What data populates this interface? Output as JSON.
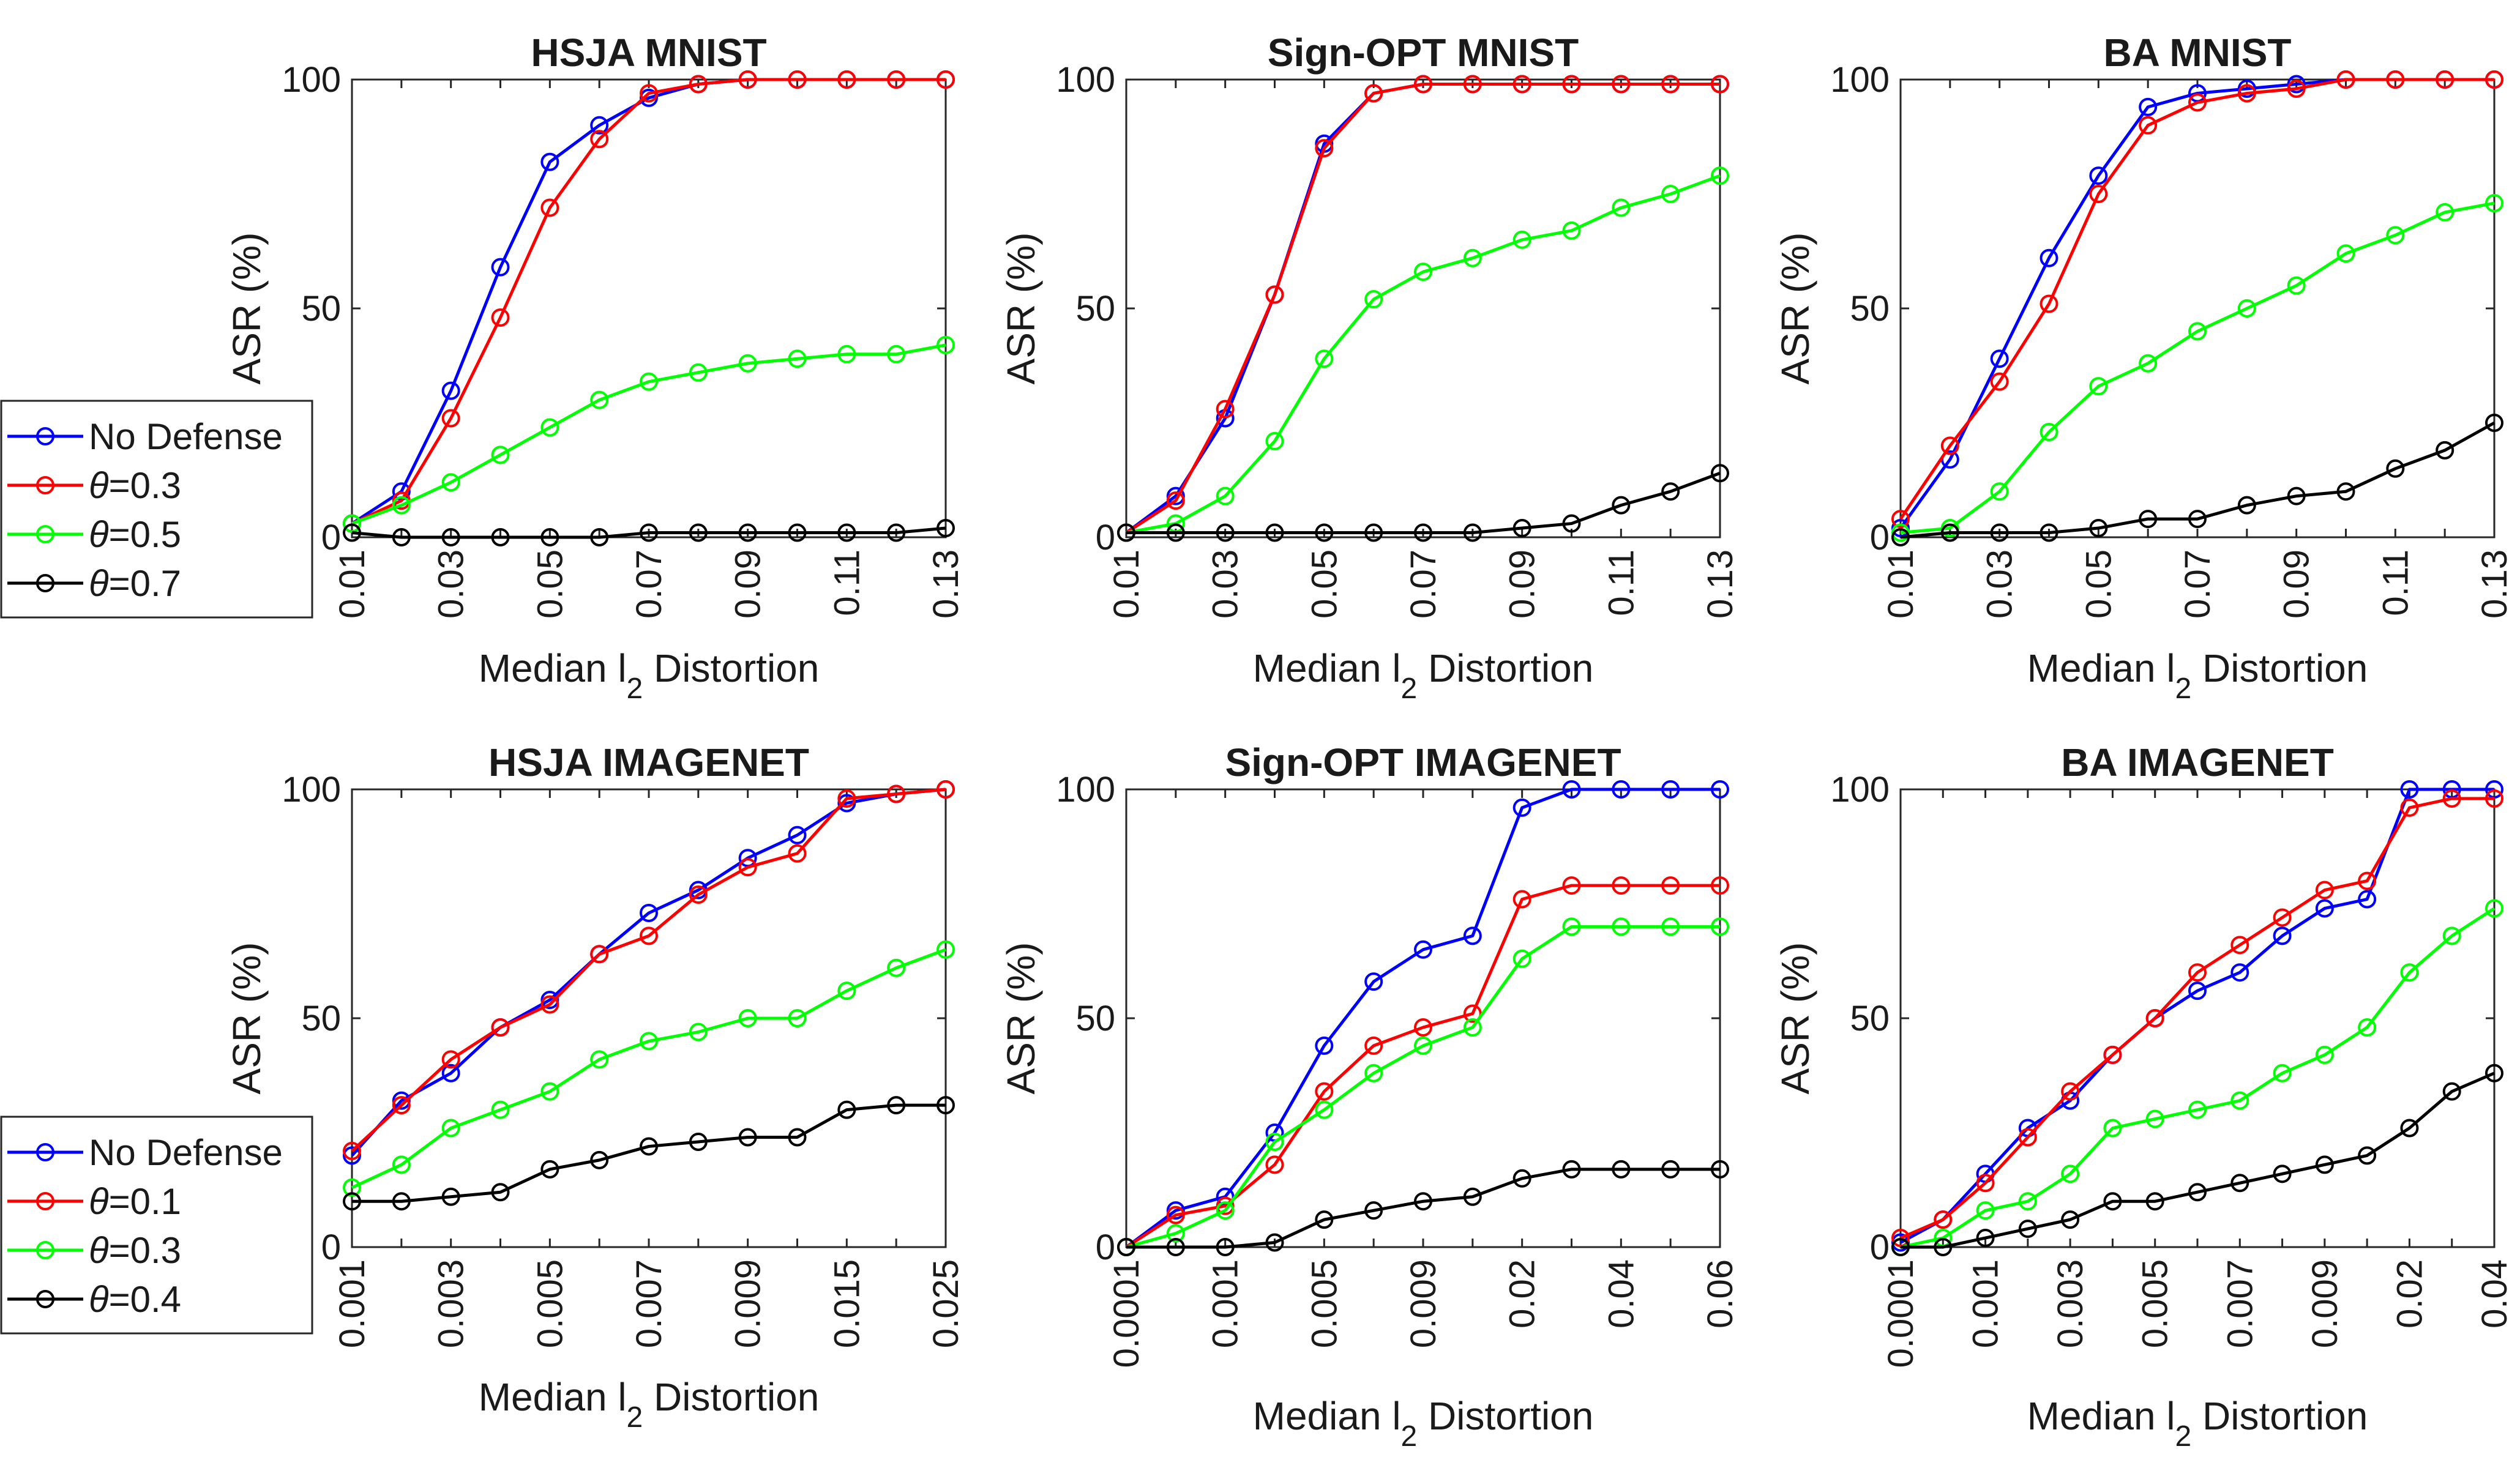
{
  "colors": {
    "No Defense": "#0000ff",
    "theta_a": "#ff0000",
    "theta_b": "#00ff00",
    "theta_c": "#000000"
  },
  "chart_data": [
    {
      "type": "line",
      "title": "HSJA MNIST",
      "xlabel": "Median l2 Distortion",
      "ylabel": "ASR (%)",
      "ylim": [
        0,
        100
      ],
      "yticks": [
        "0",
        "50",
        "100"
      ],
      "x": [
        "0.01",
        "0.02",
        "0.03",
        "0.04",
        "0.05",
        "0.06",
        "0.07",
        "0.08",
        "0.09",
        "0.10",
        "0.11",
        "0.12",
        "0.13"
      ],
      "xticks": [
        "0.01",
        "0.03",
        "0.05",
        "0.07",
        "0.09",
        "0.11",
        "0.13"
      ],
      "legend": {
        "placement": "left-outside",
        "entries": [
          "No Defense",
          "θ=0.3",
          "θ=0.5",
          "θ=0.7"
        ]
      },
      "series": [
        {
          "name": "No Defense",
          "values": [
            3,
            10,
            32,
            59,
            82,
            90,
            96,
            99,
            100,
            100,
            100,
            100,
            100
          ]
        },
        {
          "name": "θ=0.3",
          "values": [
            3,
            8,
            26,
            48,
            72,
            87,
            97,
            99,
            100,
            100,
            100,
            100,
            100
          ]
        },
        {
          "name": "θ=0.5",
          "values": [
            3,
            7,
            12,
            18,
            24,
            30,
            34,
            36,
            38,
            39,
            40,
            40,
            42
          ]
        },
        {
          "name": "θ=0.7",
          "values": [
            1,
            0,
            0,
            0,
            0,
            0,
            1,
            1,
            1,
            1,
            1,
            1,
            2
          ]
        }
      ]
    },
    {
      "type": "line",
      "title": "Sign-OPT MNIST",
      "xlabel": "Median l2 Distortion",
      "ylabel": "ASR (%)",
      "ylim": [
        0,
        100
      ],
      "yticks": [
        "0",
        "50",
        "100"
      ],
      "x": [
        "0.01",
        "0.02",
        "0.03",
        "0.04",
        "0.05",
        "0.06",
        "0.07",
        "0.08",
        "0.09",
        "0.10",
        "0.11",
        "0.12",
        "0.13"
      ],
      "xticks": [
        "0.01",
        "0.03",
        "0.05",
        "0.07",
        "0.09",
        "0.11",
        "0.13"
      ],
      "series": [
        {
          "name": "No Defense",
          "values": [
            1,
            9,
            26,
            53,
            86,
            97,
            99,
            99,
            99,
            99,
            99,
            99,
            99
          ]
        },
        {
          "name": "θ=0.3",
          "values": [
            1,
            8,
            28,
            53,
            85,
            97,
            99,
            99,
            99,
            99,
            99,
            99,
            99
          ]
        },
        {
          "name": "θ=0.5",
          "values": [
            1,
            3,
            9,
            21,
            39,
            52,
            58,
            61,
            65,
            67,
            72,
            75,
            79
          ]
        },
        {
          "name": "θ=0.7",
          "values": [
            1,
            1,
            1,
            1,
            1,
            1,
            1,
            1,
            2,
            3,
            7,
            10,
            14
          ]
        }
      ]
    },
    {
      "type": "line",
      "title": "BA MNIST",
      "xlabel": "Median l2 Distortion",
      "ylabel": "ASR (%)",
      "ylim": [
        0,
        100
      ],
      "yticks": [
        "0",
        "50",
        "100"
      ],
      "x": [
        "0.01",
        "0.02",
        "0.03",
        "0.04",
        "0.05",
        "0.06",
        "0.07",
        "0.08",
        "0.09",
        "0.10",
        "0.11",
        "0.12",
        "0.13"
      ],
      "xticks": [
        "0.01",
        "0.03",
        "0.05",
        "0.07",
        "0.09",
        "0.11",
        "0.13"
      ],
      "series": [
        {
          "name": "No Defense",
          "values": [
            2,
            17,
            39,
            61,
            79,
            94,
            97,
            98,
            99,
            100,
            100,
            100,
            100
          ]
        },
        {
          "name": "θ=0.3",
          "values": [
            4,
            20,
            34,
            51,
            75,
            90,
            95,
            97,
            98,
            100,
            100,
            100,
            100
          ]
        },
        {
          "name": "θ=0.5",
          "values": [
            1,
            2,
            10,
            23,
            33,
            38,
            45,
            50,
            55,
            62,
            66,
            71,
            73
          ]
        },
        {
          "name": "θ=0.7",
          "values": [
            0,
            1,
            1,
            1,
            2,
            4,
            4,
            7,
            9,
            10,
            15,
            19,
            25
          ]
        }
      ]
    },
    {
      "type": "line",
      "title": "HSJA IMAGENET",
      "xlabel": "Median l2 Distortion",
      "ylabel": "ASR (%)",
      "ylim": [
        0,
        100
      ],
      "yticks": [
        "0",
        "50",
        "100"
      ],
      "x": [
        "0.001",
        "0.002",
        "0.003",
        "0.004",
        "0.005",
        "0.006",
        "0.007",
        "0.008",
        "0.009",
        "0.01",
        "0.015",
        "0.02",
        "0.025"
      ],
      "xticks": [
        "0.001",
        "0.003",
        "0.005",
        "0.007",
        "0.009",
        "0.015",
        "0.025"
      ],
      "xtick_positions": [
        0,
        2,
        4,
        6,
        8,
        10,
        12
      ],
      "legend": {
        "placement": "left-outside",
        "entries": [
          "No Defense",
          "θ=0.1",
          "θ=0.3",
          "θ=0.4"
        ]
      },
      "series": [
        {
          "name": "No Defense",
          "values": [
            20,
            32,
            38,
            48,
            54,
            64,
            73,
            78,
            85,
            90,
            97,
            99,
            100
          ]
        },
        {
          "name": "θ=0.1",
          "values": [
            21,
            31,
            41,
            48,
            53,
            64,
            68,
            77,
            83,
            86,
            98,
            99,
            100
          ]
        },
        {
          "name": "θ=0.3",
          "values": [
            13,
            18,
            26,
            30,
            34,
            41,
            45,
            47,
            50,
            50,
            56,
            61,
            65
          ]
        },
        {
          "name": "θ=0.4",
          "values": [
            10,
            10,
            11,
            12,
            17,
            19,
            22,
            23,
            24,
            24,
            30,
            31,
            31
          ]
        }
      ]
    },
    {
      "type": "line",
      "title": "Sign-OPT IMAGENET",
      "xlabel": "Median l2 Distortion",
      "ylabel": "ASR (%)",
      "ylim": [
        0,
        100
      ],
      "yticks": [
        "0",
        "50",
        "100"
      ],
      "x": [
        "0.0001",
        "0.0005",
        "0.001",
        "0.003",
        "0.005",
        "0.007",
        "0.009",
        "0.01",
        "0.02",
        "0.03",
        "0.04",
        "0.05",
        "0.06"
      ],
      "xticks": [
        "0.0001",
        "0.001",
        "0.005",
        "0.009",
        "0.02",
        "0.04",
        "0.06"
      ],
      "xtick_positions": [
        0,
        2,
        4,
        6,
        8,
        10,
        12
      ],
      "series": [
        {
          "name": "No Defense",
          "values": [
            0,
            8,
            11,
            25,
            44,
            58,
            65,
            68,
            96,
            100,
            100,
            100,
            100
          ]
        },
        {
          "name": "θ=0.1",
          "values": [
            0,
            7,
            9,
            18,
            34,
            44,
            48,
            51,
            76,
            79,
            79,
            79,
            79
          ]
        },
        {
          "name": "θ=0.3",
          "values": [
            0,
            3,
            8,
            23,
            30,
            38,
            44,
            48,
            63,
            70,
            70,
            70,
            70
          ]
        },
        {
          "name": "θ=0.4",
          "values": [
            0,
            0,
            0,
            1,
            6,
            8,
            10,
            11,
            15,
            17,
            17,
            17,
            17
          ]
        }
      ]
    },
    {
      "type": "line",
      "title": "BA IMAGENET",
      "xlabel": "Median l2 Distortion",
      "ylabel": "ASR (%)",
      "ylim": [
        0,
        100
      ],
      "yticks": [
        "0",
        "50",
        "100"
      ],
      "x": [
        "0.0001",
        "0.0005",
        "0.001",
        "0.002",
        "0.003",
        "0.004",
        "0.005",
        "0.006",
        "0.007",
        "0.008",
        "0.009",
        "0.01",
        "0.02",
        "0.03",
        "0.04"
      ],
      "xticks": [
        "0.0001",
        "0.001",
        "0.003",
        "0.005",
        "0.007",
        "0.009",
        "0.02",
        "0.04"
      ],
      "xtick_positions": [
        0,
        2,
        4,
        6,
        8,
        10,
        12,
        14
      ],
      "series": [
        {
          "name": "No Defense",
          "values": [
            1,
            6,
            16,
            26,
            32,
            42,
            50,
            56,
            60,
            68,
            74,
            76,
            100,
            100,
            100
          ]
        },
        {
          "name": "θ=0.1",
          "values": [
            2,
            6,
            14,
            24,
            34,
            42,
            50,
            60,
            66,
            72,
            78,
            80,
            96,
            98,
            98
          ]
        },
        {
          "name": "θ=0.3",
          "values": [
            0,
            2,
            8,
            10,
            16,
            26,
            28,
            30,
            32,
            38,
            42,
            48,
            60,
            68,
            74
          ]
        },
        {
          "name": "θ=0.4",
          "values": [
            0,
            0,
            2,
            4,
            6,
            10,
            10,
            12,
            14,
            16,
            18,
            20,
            26,
            34,
            38
          ]
        }
      ]
    }
  ]
}
